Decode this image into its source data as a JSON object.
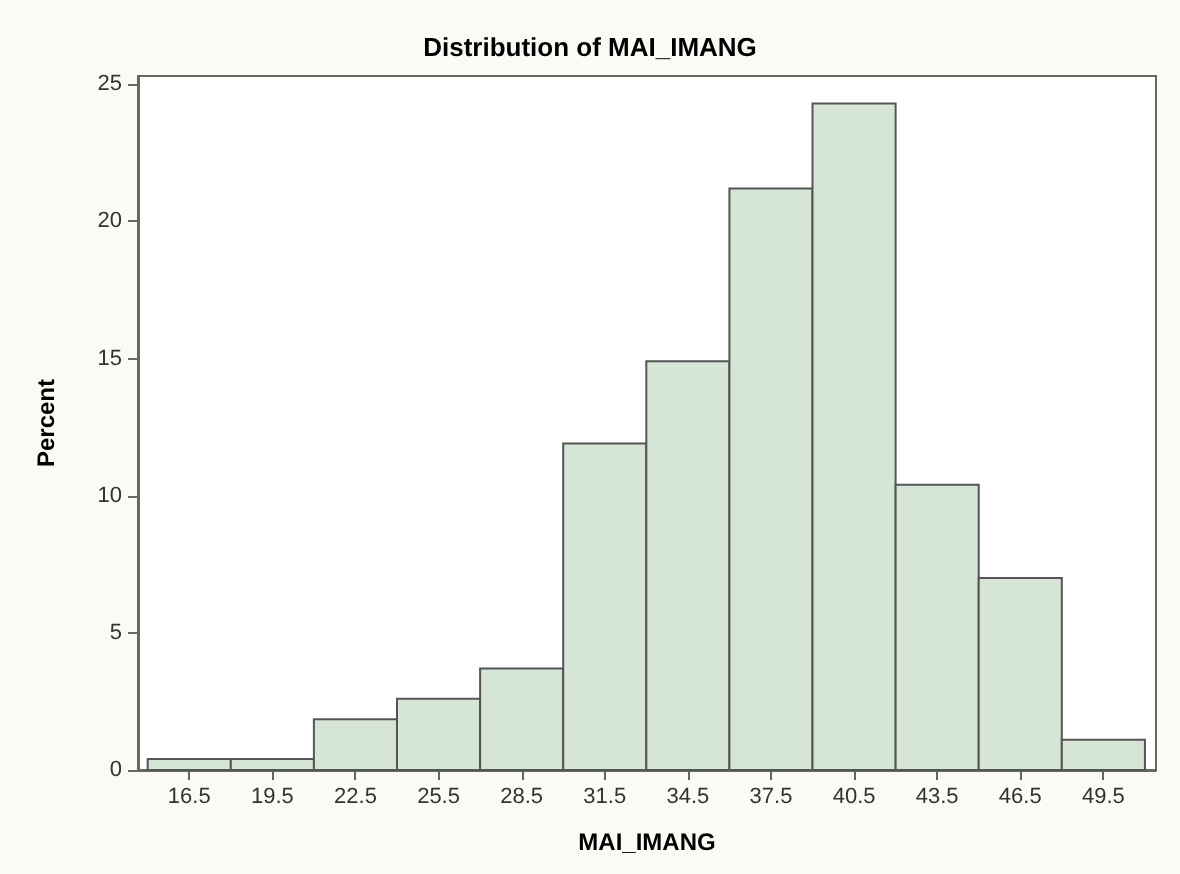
{
  "chart_data": {
    "type": "histogram",
    "title": "Distribution of MAI_IMANG",
    "xlabel": "MAI_IMANG",
    "ylabel": "Percent",
    "bins": [
      15,
      18,
      21,
      24,
      27,
      30,
      33,
      36,
      39,
      42,
      45,
      48,
      51
    ],
    "values": [
      0.4,
      0.4,
      1.85,
      2.6,
      3.7,
      11.9,
      14.9,
      21.2,
      24.3,
      10.4,
      7.0,
      1.1
    ],
    "color": "#d6e6d6",
    "xlim": [
      14.65,
      51.4
    ],
    "xticks": [
      16.5,
      19.5,
      22.5,
      25.5,
      28.5,
      31.5,
      34.5,
      37.5,
      40.5,
      43.5,
      46.5,
      49.5
    ],
    "ylim": [
      0,
      25.3
    ],
    "yticks": [
      0,
      5,
      10,
      15,
      20,
      25
    ],
    "grid": false
  }
}
